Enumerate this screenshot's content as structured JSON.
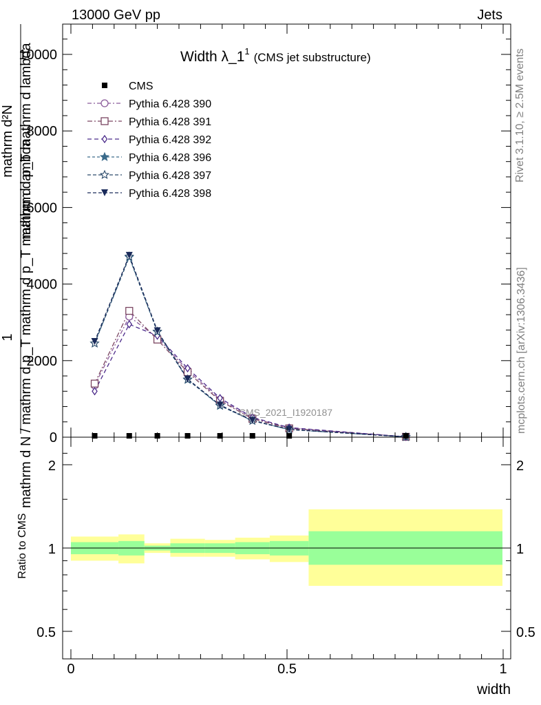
{
  "header": {
    "energy": "13000 GeV pp",
    "category": "Jets"
  },
  "side": {
    "rivet": "Rivet 3.1.10, ≥ 2.5M events",
    "mcplots": "mcplots.cern.ch [arXiv:1306.3436]"
  },
  "watermark": "CMS_2021_I1920187",
  "chart_data": [
    {
      "type": "line",
      "title_main": "Width λ_1",
      "title_sup": "1",
      "title_sub": "(CMS jet substructure)",
      "ylabel_num": "1",
      "ylabel_den": "mathrm d N / mathrm d p_T mathrm d p_T mathrm d lambda",
      "ylabel_top": "mathrm d²N",
      "ylabel_top_line2": "mathrm d p_T mathrm d lambda",
      "xlim": [
        0,
        1
      ],
      "ylim": [
        0,
        10000
      ],
      "yticks": [
        "0",
        "2000",
        "4000",
        "6000",
        "8000",
        "10000"
      ],
      "x": [
        0.055,
        0.135,
        0.2,
        0.27,
        0.345,
        0.42,
        0.505,
        0.775
      ],
      "cms": {
        "name": "CMS",
        "values": [
          0,
          0,
          0,
          0,
          0,
          0,
          0,
          0
        ]
      },
      "series": [
        {
          "name": "Pythia 6.428 390",
          "marker": "circle-open",
          "color": "#8a5a9a",
          "values": [
            1350,
            3150,
            2600,
            1750,
            980,
            500,
            240,
            10
          ]
        },
        {
          "name": "Pythia 6.428 391",
          "marker": "square-open",
          "color": "#7a4560",
          "values": [
            1400,
            3300,
            2550,
            1700,
            950,
            480,
            230,
            10
          ]
        },
        {
          "name": "Pythia 6.428 392",
          "marker": "diamond-open",
          "color": "#4b2a8a",
          "values": [
            1200,
            2950,
            2650,
            1800,
            1020,
            520,
            250,
            10
          ]
        },
        {
          "name": "Pythia 6.428 396",
          "marker": "star-filled",
          "color": "#3a6a8a",
          "values": [
            2450,
            4700,
            2750,
            1500,
            820,
            430,
            200,
            8
          ]
        },
        {
          "name": "Pythia 6.428 397",
          "marker": "star-open",
          "color": "#2a4a6a",
          "values": [
            2450,
            4720,
            2760,
            1510,
            830,
            430,
            200,
            8
          ]
        },
        {
          "name": "Pythia 6.428 398",
          "marker": "triangle-down-filled",
          "color": "#1a2a5a",
          "values": [
            2500,
            4750,
            2780,
            1520,
            840,
            440,
            205,
            8
          ]
        }
      ]
    },
    {
      "type": "area",
      "ylabel": "Ratio to CMS",
      "xlabel": "width",
      "xlim": [
        0,
        1
      ],
      "ylim": [
        0.4,
        2.3
      ],
      "yticks": [
        "0.5",
        "1",
        "2"
      ],
      "xticks": [
        "0",
        "0.5",
        "1"
      ],
      "bins": [
        {
          "x0": 0.0,
          "x1": 0.11,
          "inner": [
            0.95,
            1.05
          ],
          "outer": [
            0.9,
            1.1
          ]
        },
        {
          "x0": 0.11,
          "x1": 0.17,
          "inner": [
            0.94,
            1.06
          ],
          "outer": [
            0.88,
            1.12
          ]
        },
        {
          "x0": 0.17,
          "x1": 0.23,
          "inner": [
            0.98,
            1.02
          ],
          "outer": [
            0.96,
            1.04
          ]
        },
        {
          "x0": 0.23,
          "x1": 0.31,
          "inner": [
            0.96,
            1.04
          ],
          "outer": [
            0.93,
            1.08
          ]
        },
        {
          "x0": 0.31,
          "x1": 0.38,
          "inner": [
            0.96,
            1.04
          ],
          "outer": [
            0.93,
            1.07
          ]
        },
        {
          "x0": 0.38,
          "x1": 0.46,
          "inner": [
            0.95,
            1.05
          ],
          "outer": [
            0.91,
            1.09
          ]
        },
        {
          "x0": 0.46,
          "x1": 0.55,
          "inner": [
            0.94,
            1.06
          ],
          "outer": [
            0.89,
            1.11
          ]
        },
        {
          "x0": 0.55,
          "x1": 1.0,
          "inner": [
            0.87,
            1.15
          ],
          "outer": [
            0.73,
            1.38
          ]
        }
      ]
    }
  ]
}
